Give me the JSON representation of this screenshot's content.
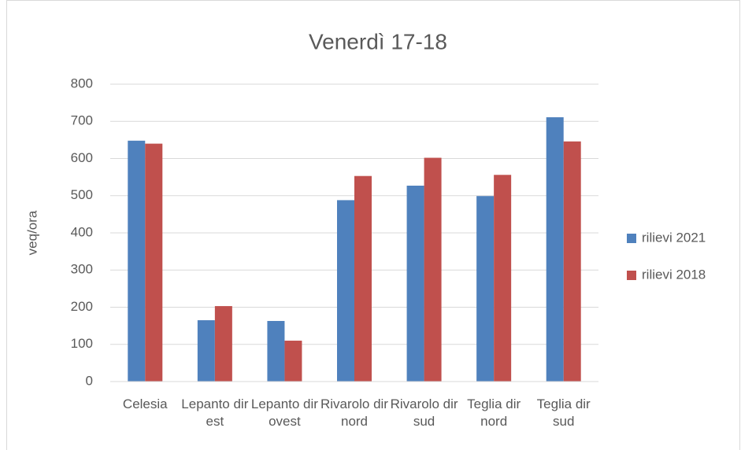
{
  "chart_data": {
    "type": "bar",
    "title": "Venerdì 17-18",
    "ylabel": "veq/ora",
    "categories": [
      "Celesia",
      "Lepanto dir est",
      "Lepanto dir ovest",
      "Rivarolo dir nord",
      "Rivarolo dir sud",
      "Teglia dir nord",
      "Teglia dir sud"
    ],
    "series": [
      {
        "name": "rilievi 2021",
        "color": "#4f81bd",
        "values": [
          648,
          165,
          163,
          488,
          527,
          499,
          711
        ]
      },
      {
        "name": "rilievi 2018",
        "color": "#c0504d",
        "values": [
          640,
          203,
          110,
          553,
          602,
          556,
          646
        ]
      }
    ],
    "ylim": [
      0,
      800
    ],
    "yticks": [
      0,
      100,
      200,
      300,
      400,
      500,
      600,
      700,
      800
    ],
    "grid": true,
    "legend": "right"
  }
}
